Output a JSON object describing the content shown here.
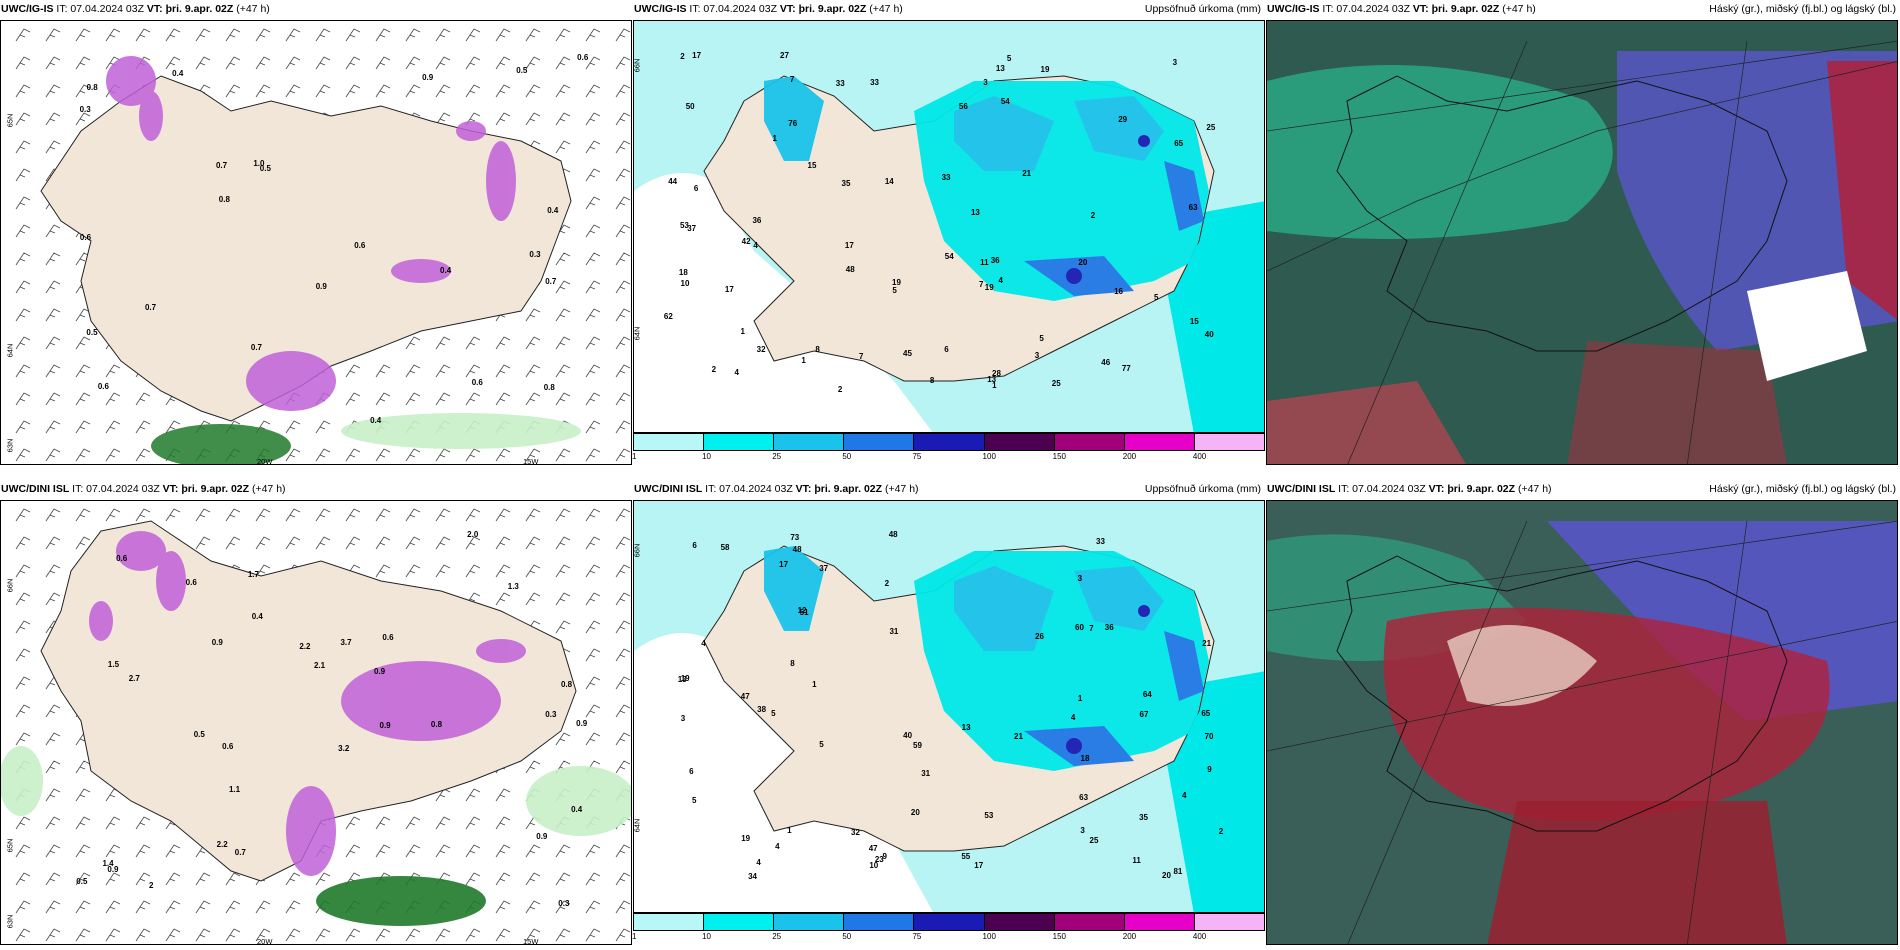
{
  "panels": [
    {
      "model": "UWC/IG-IS",
      "it_label": "IT: 07.04.2024 03Z",
      "vt_label": "VT: þri. 9.apr. 02Z",
      "lead": "(+47 h)",
      "product": "",
      "lat_labels": [
        "65N",
        "64N",
        "63N"
      ],
      "lon_labels": [
        "20W",
        "15W"
      ],
      "values": [
        "0.4",
        "0.3",
        "0.6",
        "0.4",
        "0.5",
        "0.6",
        "0.5",
        "0.9",
        "0.7",
        "0.4",
        "0.3",
        "0.6",
        "0.8",
        "0.8",
        "0.7",
        "0.4",
        "0.9",
        "0.6",
        "1.0",
        "0.7",
        "0.6",
        "0.5",
        "0.8",
        "0.7"
      ]
    },
    {
      "model": "UWC/IG-IS",
      "it_label": "IT: 07.04.2024 03Z",
      "vt_label": "VT: þri. 9.apr. 02Z",
      "lead": "(+47 h)",
      "product": "Uppsöfnuð úrkoma (mm)",
      "lat_labels": [
        "66N",
        "64N"
      ],
      "colorbar": [
        "1",
        "10",
        "25",
        "50",
        "75",
        "100",
        "150",
        "200",
        "400"
      ],
      "values": [
        "4",
        "6",
        "3",
        "19",
        "17",
        "14",
        "2",
        "36",
        "35",
        "33",
        "32",
        "44",
        "17",
        "19",
        "16",
        "15",
        "21",
        "10",
        "2",
        "1",
        "18",
        "11",
        "5",
        "4",
        "2",
        "5",
        "3",
        "37",
        "42",
        "40",
        "63",
        "48",
        "33",
        "50",
        "54",
        "27",
        "25",
        "62",
        "77",
        "76",
        "36",
        "56",
        "25",
        "33",
        "19",
        "15",
        "46",
        "28",
        "45",
        "65",
        "54",
        "29",
        "53",
        "17",
        "20",
        "8",
        "8",
        "13",
        "13",
        "13",
        "3",
        "5",
        "7",
        "1",
        "2",
        "5",
        "1",
        "4",
        "6",
        "1",
        "7",
        "7"
      ]
    },
    {
      "model": "UWC/IG-IS",
      "it_label": "IT: 07.04.2024 03Z",
      "vt_label": "VT: þri. 9.apr. 02Z",
      "lead": "(+47 h)",
      "product": "Háský (gr.), miðský (fj.bl.) og lágský (bl.)"
    },
    {
      "model": "UWC/DINI ISL",
      "it_label": "IT: 07.04.2024 03Z",
      "vt_label": "VT: þri. 9.apr. 02Z",
      "lead": "(+47 h)",
      "product": "",
      "lat_labels": [
        "66N",
        "65N",
        "63N"
      ],
      "lon_labels": [
        "20W",
        "15W"
      ],
      "values": [
        "2.2",
        "1.7",
        "2.2",
        "2",
        "0.6",
        "0.9",
        "0.5",
        "1.1",
        "0.5",
        "0.6",
        "0.9",
        "1.3",
        "1.4",
        "0.4",
        "0.9",
        "0.9",
        "0.9",
        "0.3",
        "1.5",
        "2.7",
        "0.9",
        "0.4",
        "3.7",
        "3.2",
        "2.0",
        "0.7",
        "2.1",
        "0.3",
        "0.8",
        "0.6",
        "0.8",
        "0.6"
      ]
    },
    {
      "model": "UWC/DINI ISL",
      "it_label": "IT: 07.04.2024 03Z",
      "vt_label": "VT: þri. 9.apr. 02Z",
      "lead": "(+47 h)",
      "product": "Uppsöfnuð úrkoma (mm)",
      "lat_labels": [
        "66N",
        "64N"
      ],
      "colorbar": [
        "1",
        "10",
        "25",
        "50",
        "75",
        "100",
        "150",
        "200",
        "400"
      ],
      "values": [
        "4",
        "17",
        "1",
        "13",
        "4",
        "1",
        "18",
        "12",
        "5",
        "38",
        "48",
        "33",
        "47",
        "20",
        "19",
        "2",
        "3",
        "2",
        "6",
        "4",
        "5",
        "26",
        "21",
        "25",
        "34",
        "63",
        "40",
        "64",
        "35",
        "55",
        "58",
        "37",
        "31",
        "48",
        "47",
        "23",
        "53",
        "59",
        "36",
        "31",
        "67",
        "70",
        "73",
        "81",
        "51",
        "17",
        "21",
        "65",
        "60",
        "32",
        "20",
        "19",
        "10",
        "13",
        "7",
        "9",
        "6",
        "4",
        "3",
        "11",
        "9",
        "3",
        "4",
        "8",
        "1",
        "5"
      ]
    },
    {
      "model": "UWC/DINI ISL",
      "it_label": "IT: 07.04.2024 03Z",
      "vt_label": "VT: þri. 9.apr. 02Z",
      "lead": "(+47 h)",
      "product": "Háský (gr.), miðský (fj.bl.) og lágský (bl.)"
    }
  ],
  "colors": {
    "land": "#f2e6d9",
    "sea_low": "#b8f4f4",
    "cb": [
      "#b8f7f7",
      "#00f0f0",
      "#19c3eb",
      "#1f78e6",
      "#1a1ab4",
      "#4b0050",
      "#a0007a",
      "#e600c8",
      "#f5b4f5"
    ],
    "wind_purple": "#b040d0",
    "wind_green": "#208020",
    "cloud_high": "#2cd8a0",
    "cloud_mid": "#5555cc",
    "cloud_low": "#b0203a"
  }
}
